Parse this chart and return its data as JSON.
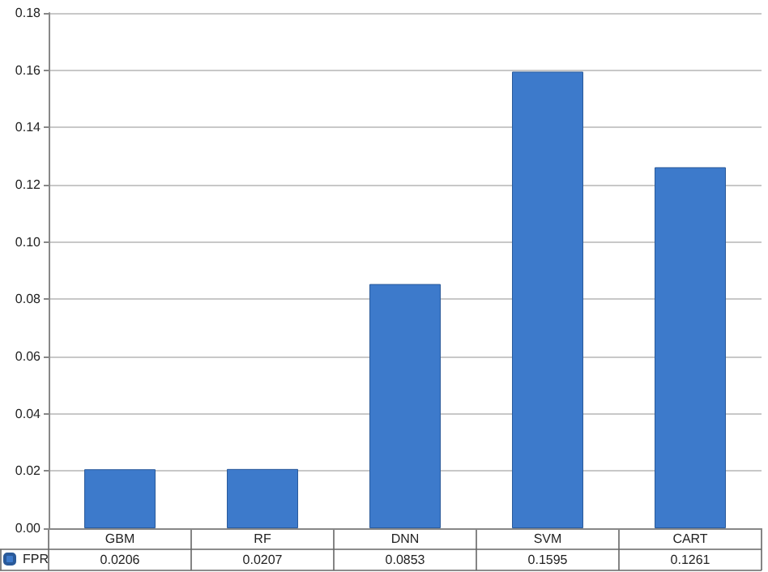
{
  "chart_data": {
    "type": "bar",
    "categories": [
      "GBM",
      "RF",
      "DNN",
      "SVM",
      "CART"
    ],
    "series": [
      {
        "name": "FPR",
        "color": "#3d7acb",
        "values": [
          0.0206,
          0.0207,
          0.0853,
          0.1595,
          0.1261
        ]
      }
    ],
    "ylim": [
      0,
      0.18
    ],
    "yticks": [
      {
        "value": 0,
        "label": "0.00"
      },
      {
        "value": 0.02,
        "label": "0.02"
      },
      {
        "value": 0.04,
        "label": "0.04"
      },
      {
        "value": 0.06,
        "label": "0.06"
      },
      {
        "value": 0.08,
        "label": "0.08"
      },
      {
        "value": 0.1,
        "label": "0.10"
      },
      {
        "value": 0.12,
        "label": "0.12"
      },
      {
        "value": 0.14,
        "label": "0.14"
      },
      {
        "value": 0.16,
        "label": "0.16"
      },
      {
        "value": 0.18,
        "label": "0.18"
      }
    ],
    "grid": "y",
    "legend": "bottom left",
    "data_labels": true
  }
}
